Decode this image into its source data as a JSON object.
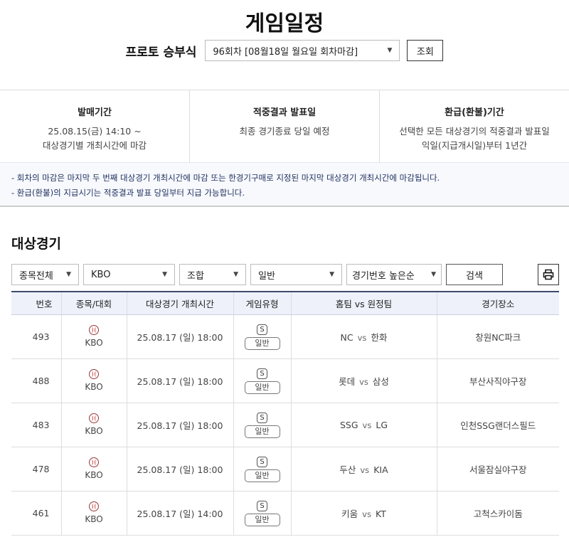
{
  "page_title": "게임일정",
  "round": {
    "label": "프로토 승부식",
    "selected": "96회차 [08월18일 월요일 회차마감]",
    "search_button": "조회"
  },
  "info": [
    {
      "title": "발매기간",
      "lines": [
        "25.08.15(금) 14:10 ~",
        "대상경기별 개최시간에 마감"
      ]
    },
    {
      "title": "적중결과 발표일",
      "lines": [
        "최종 경기종료 당일 예정"
      ]
    },
    {
      "title": "환급(환불)기간",
      "lines": [
        "선택한 모든 대상경기의 적중결과 발표일",
        "익일(지급개시일)부터 1년간"
      ]
    }
  ],
  "notes": [
    "- 회차의 마감은 마지막 두 번째 대상경기 개최시간에 마감 또는 한경기구매로 지정된 마지막 대상경기 개최시간에 마감됩니다.",
    "- 환급(환불)의 지급시기는 적중결과 발표 당일부터 지급 가능합니다."
  ],
  "section_title": "대상경기",
  "filters": {
    "sport": "종목전체",
    "league": "KBO",
    "type": "조합",
    "game": "일반",
    "sort": "경기번호 높은순",
    "search_button": "검색"
  },
  "table": {
    "headers": [
      "번호",
      "종목/대회",
      "대상경기 개최시간",
      "게임유형",
      "홈팀 vs 원정팀",
      "경기장소"
    ],
    "rows": [
      {
        "no": "493",
        "league": "KBO",
        "time": "25.08.17 (일) 18:00",
        "badge": "S",
        "type": "일반",
        "home": "NC",
        "vs": "vs",
        "away": "한화",
        "venue": "창원NC파크"
      },
      {
        "no": "488",
        "league": "KBO",
        "time": "25.08.17 (일) 18:00",
        "badge": "S",
        "type": "일반",
        "home": "롯데",
        "vs": "vs",
        "away": "삼성",
        "venue": "부산사직야구장"
      },
      {
        "no": "483",
        "league": "KBO",
        "time": "25.08.17 (일) 18:00",
        "badge": "S",
        "type": "일반",
        "home": "SSG",
        "vs": "vs",
        "away": "LG",
        "venue": "인천SSG랜더스필드"
      },
      {
        "no": "478",
        "league": "KBO",
        "time": "25.08.17 (일) 18:00",
        "badge": "S",
        "type": "일반",
        "home": "두산",
        "vs": "vs",
        "away": "KIA",
        "venue": "서울잠실야구장"
      },
      {
        "no": "461",
        "league": "KBO",
        "time": "25.08.17 (일) 14:00",
        "badge": "S",
        "type": "일반",
        "home": "키움",
        "vs": "vs",
        "away": "KT",
        "venue": "고척스카이돔"
      }
    ]
  },
  "icons": {
    "sport": "baseball-icon",
    "print": "printer-icon",
    "dropdown": "caret-down-icon"
  }
}
